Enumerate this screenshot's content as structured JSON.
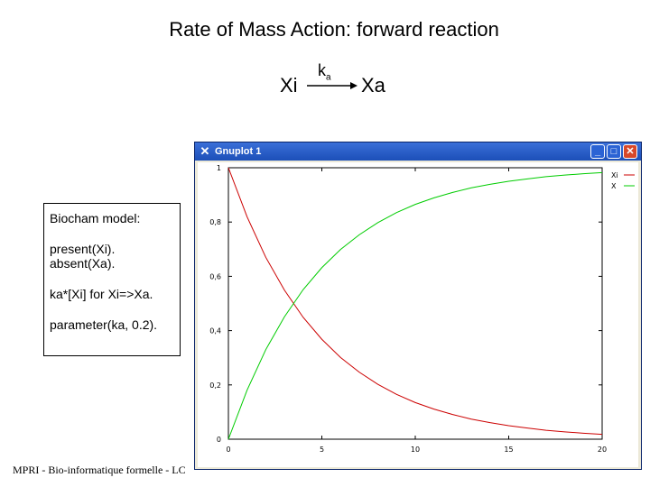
{
  "slide": {
    "title": "Rate of Mass Action: forward reaction",
    "reaction": {
      "reactant": "Xi",
      "product": "Xa",
      "rate_symbol": "k",
      "rate_subscript": "a"
    },
    "model_box": {
      "heading": "Biocham model:",
      "lines": [
        "present(Xi).",
        "absent(Xa).",
        "ka*[Xi] for Xi=>Xa.",
        "parameter(ka, 0.2)."
      ]
    },
    "footer": "MPRI - Bio-informatique formelle - LC"
  },
  "window": {
    "title": "Gnuplot 1",
    "icon": "gnuplot-x-icon",
    "buttons": [
      "minimize-icon",
      "maximize-icon",
      "close-icon"
    ],
    "button_glyphs": [
      "_",
      "□",
      "✕"
    ]
  },
  "colors": {
    "xi": "#cc0000",
    "x": "#00cc00",
    "axis": "#000000",
    "titlebar": "#1c4fb8"
  },
  "chart_data": {
    "type": "line",
    "title": "",
    "xlabel": "",
    "ylabel": "",
    "xlim": [
      0,
      20
    ],
    "ylim": [
      0,
      1
    ],
    "x_ticks": [
      "0",
      "5",
      "10",
      "15",
      "20"
    ],
    "y_ticks": [
      "0",
      "0,2",
      "0,4",
      "0,6",
      "0,8",
      "1"
    ],
    "grid": false,
    "legend_position": "top-right",
    "x": [
      0,
      1,
      2,
      3,
      4,
      5,
      6,
      7,
      8,
      9,
      10,
      11,
      12,
      13,
      14,
      15,
      16,
      17,
      18,
      19,
      20
    ],
    "series": [
      {
        "name": "Xi",
        "color": "#cc0000",
        "values": [
          1.0,
          0.819,
          0.67,
          0.549,
          0.449,
          0.368,
          0.301,
          0.247,
          0.202,
          0.165,
          0.135,
          0.111,
          0.091,
          0.074,
          0.061,
          0.05,
          0.041,
          0.033,
          0.027,
          0.022,
          0.018
        ]
      },
      {
        "name": "X",
        "color": "#00cc00",
        "values": [
          0.0,
          0.181,
          0.33,
          0.451,
          0.551,
          0.632,
          0.699,
          0.753,
          0.798,
          0.835,
          0.865,
          0.889,
          0.909,
          0.926,
          0.939,
          0.95,
          0.959,
          0.967,
          0.973,
          0.978,
          0.982
        ]
      }
    ]
  }
}
